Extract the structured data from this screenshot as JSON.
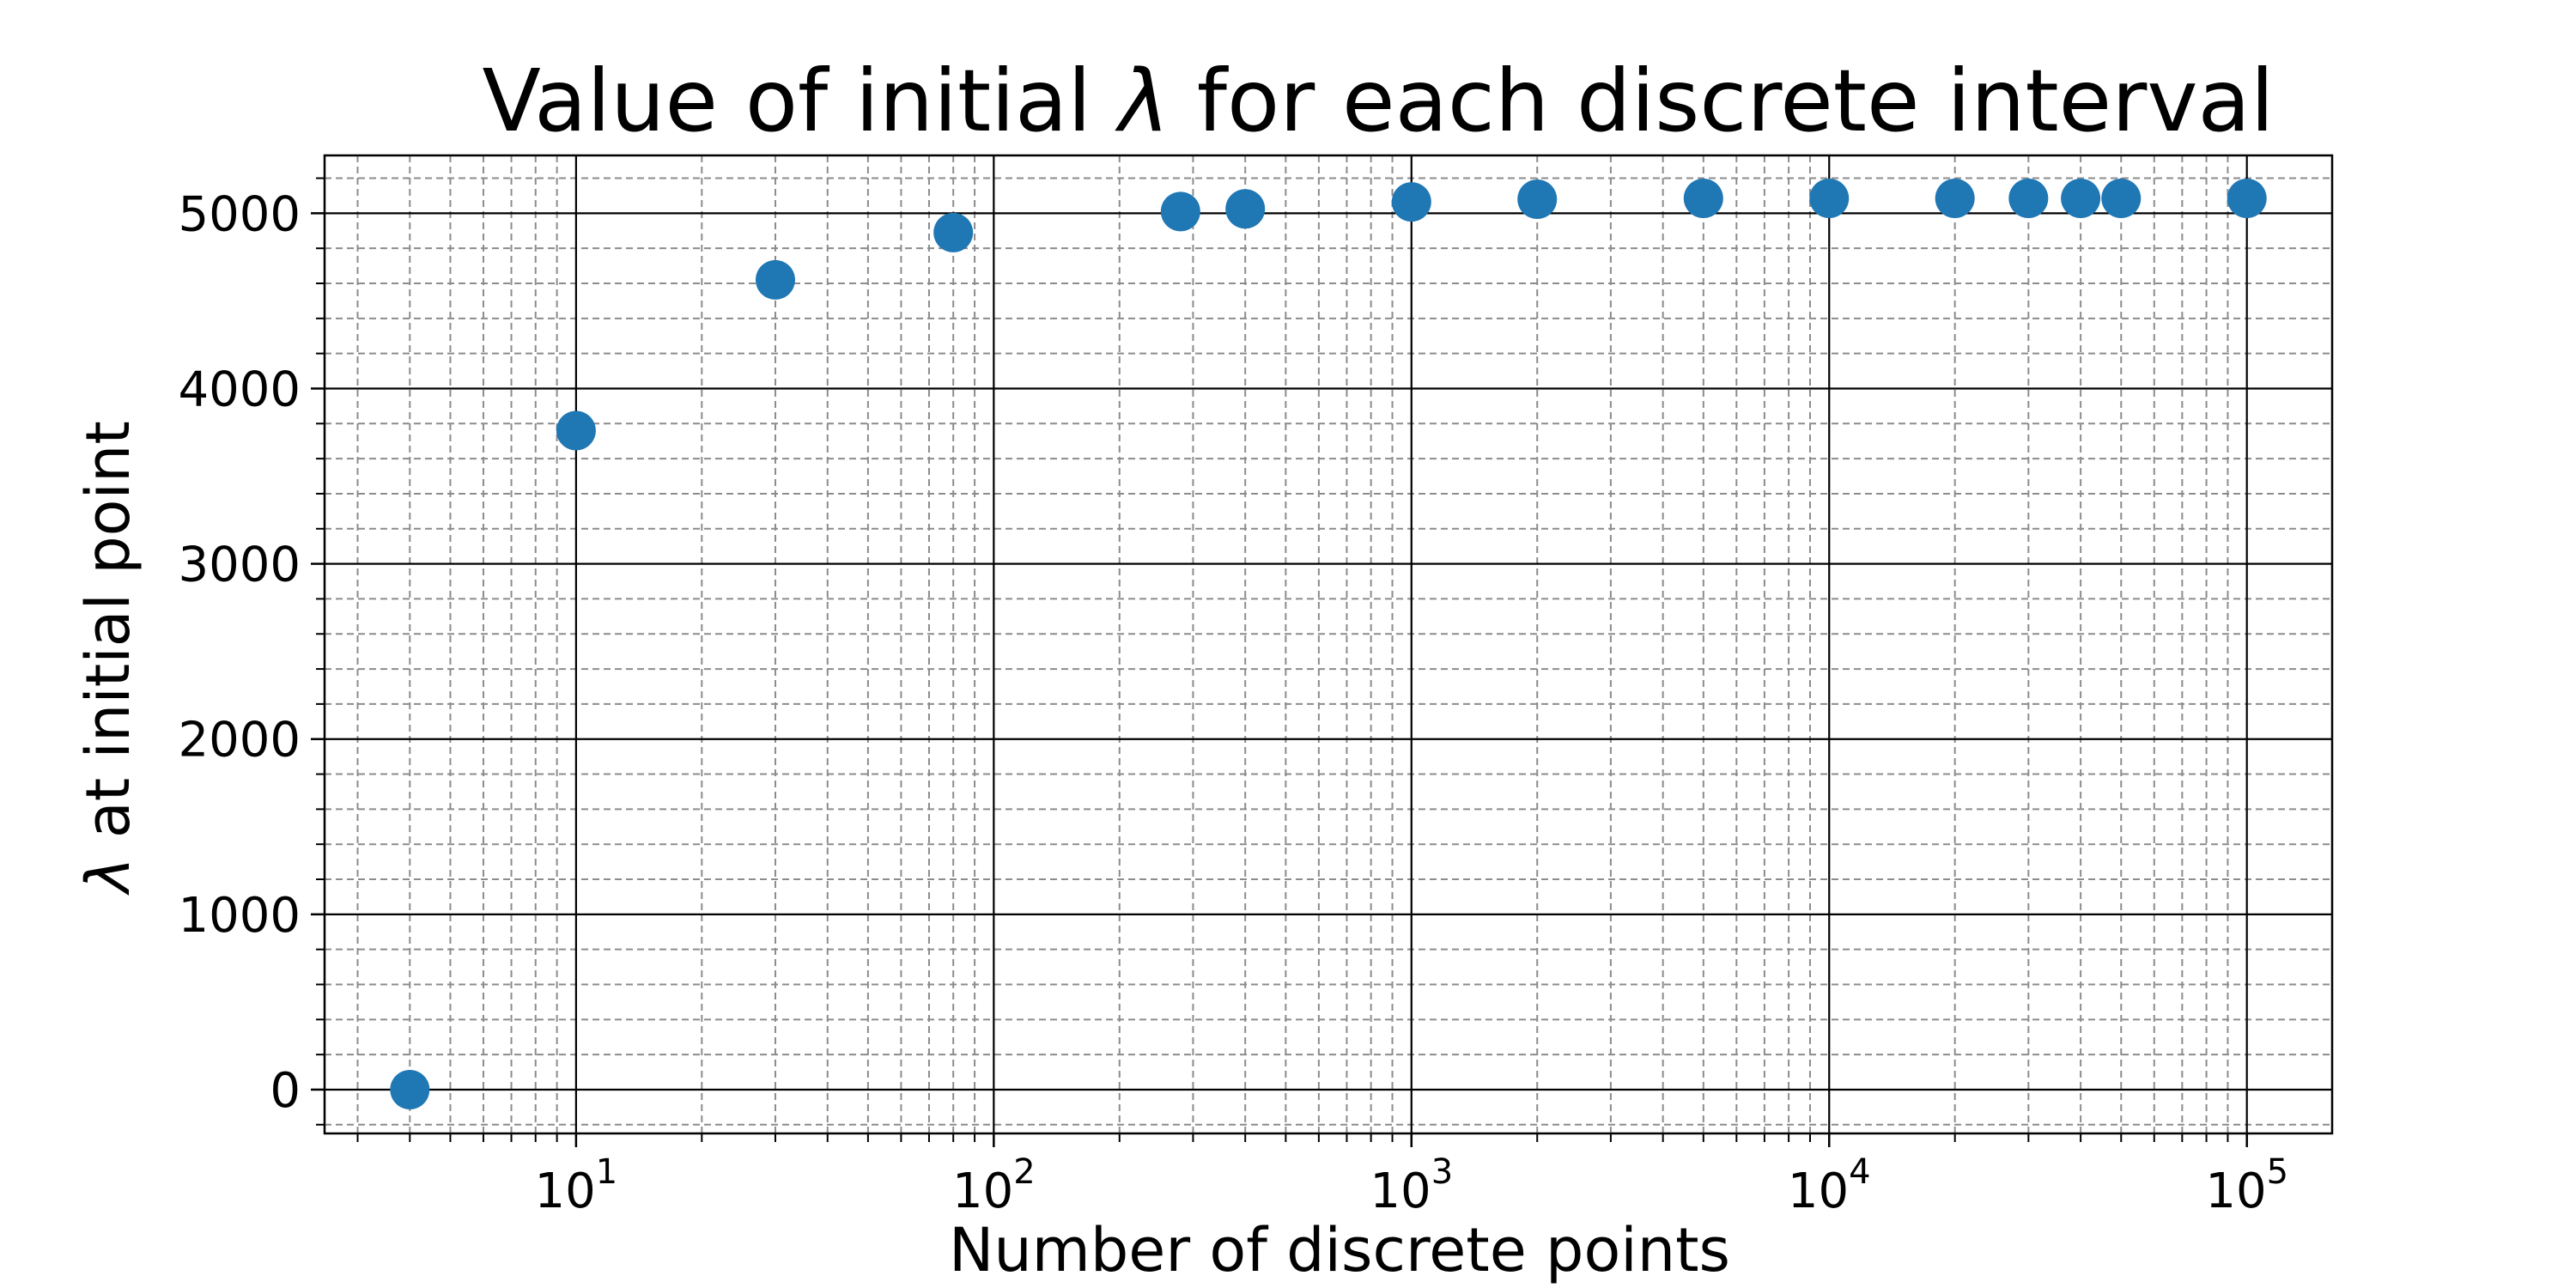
{
  "chart_data": {
    "type": "scatter",
    "title_prefix": "Value of initial ",
    "title_symbol": "λ",
    "title_suffix": " for each discrete interval",
    "xlabel": "Number of discrete points",
    "ylabel_symbol": "λ",
    "ylabel_suffix": " at initial point",
    "xscale": "log",
    "xlim": [
      2.5,
      160000
    ],
    "ylim": [
      -250,
      5330
    ],
    "grid": "major solid black, minor dashed gray",
    "x_ticks": [
      {
        "base": "10",
        "exp": "1",
        "value": 10
      },
      {
        "base": "10",
        "exp": "2",
        "value": 100
      },
      {
        "base": "10",
        "exp": "3",
        "value": 1000
      },
      {
        "base": "10",
        "exp": "4",
        "value": 10000
      },
      {
        "base": "10",
        "exp": "5",
        "value": 100000
      }
    ],
    "y_ticks": [
      {
        "label": "0",
        "value": 0
      },
      {
        "label": "1000",
        "value": 1000
      },
      {
        "label": "2000",
        "value": 2000
      },
      {
        "label": "3000",
        "value": 3000
      },
      {
        "label": "4000",
        "value": 4000
      },
      {
        "label": "5000",
        "value": 5000
      }
    ],
    "marker_color": "#1f77b4",
    "points": [
      {
        "x": 4,
        "y": 0
      },
      {
        "x": 10,
        "y": 3760
      },
      {
        "x": 30,
        "y": 4620
      },
      {
        "x": 80,
        "y": 4890
      },
      {
        "x": 280,
        "y": 5010
      },
      {
        "x": 400,
        "y": 5025
      },
      {
        "x": 1000,
        "y": 5065
      },
      {
        "x": 2000,
        "y": 5080
      },
      {
        "x": 5000,
        "y": 5085
      },
      {
        "x": 10000,
        "y": 5085
      },
      {
        "x": 20000,
        "y": 5085
      },
      {
        "x": 30000,
        "y": 5085
      },
      {
        "x": 40000,
        "y": 5085
      },
      {
        "x": 50000,
        "y": 5085
      },
      {
        "x": 100000,
        "y": 5085
      }
    ]
  }
}
